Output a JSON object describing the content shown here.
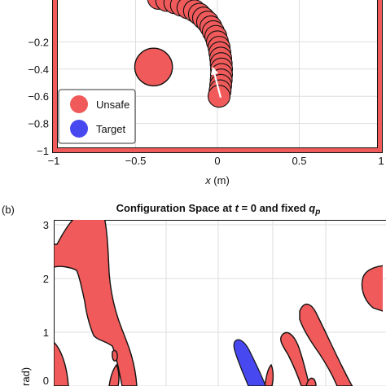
{
  "chart_data": [
    {
      "type": "scatter",
      "panel": "a",
      "xlabel_var": "x",
      "xlabel_unit": " (m)",
      "xlim": [
        -1,
        1
      ],
      "ylim": [
        -1,
        0
      ],
      "x_ticks": [
        -1,
        -0.5,
        0,
        0.5,
        1
      ],
      "x_tick_labels": [
        "−1",
        "−0.5",
        "0",
        "0.5",
        "1"
      ],
      "y_ticks": [
        -0.2,
        -0.4,
        -0.6,
        -0.8,
        -1
      ],
      "y_tick_labels": [
        "−0.2",
        "−0.4",
        "−0.6",
        "−0.8",
        "−1"
      ],
      "grid": true,
      "workspace_boundary_color": "#f05a5a",
      "obstacle": {
        "center": [
          -0.39,
          -0.385
        ],
        "radius": 0.115,
        "color": "#f05a5a"
      },
      "robot_trajectory": {
        "color": "#f05a5a",
        "radius": 0.067,
        "points": [
          [
            -0.36,
            0.12
          ],
          [
            -0.31,
            0.105
          ],
          [
            -0.26,
            0.088
          ],
          [
            -0.22,
            0.07
          ],
          [
            -0.18,
            0.05
          ],
          [
            -0.14,
            0.028
          ],
          [
            -0.11,
            0.003
          ],
          [
            -0.085,
            -0.025
          ],
          [
            -0.06,
            -0.055
          ],
          [
            -0.04,
            -0.09
          ],
          [
            -0.025,
            -0.125
          ],
          [
            -0.01,
            -0.16
          ],
          [
            0.0,
            -0.2
          ],
          [
            0.01,
            -0.24
          ],
          [
            0.015,
            -0.28
          ],
          [
            0.02,
            -0.32
          ],
          [
            0.023,
            -0.36
          ],
          [
            0.025,
            -0.4
          ],
          [
            0.025,
            -0.44
          ],
          [
            0.023,
            -0.48
          ],
          [
            0.02,
            -0.52
          ],
          [
            0.016,
            -0.56
          ],
          [
            0.01,
            -0.6
          ]
        ]
      },
      "heading_arrow": {
        "from": [
          0.02,
          -0.61
        ],
        "to": [
          -0.03,
          -0.38
        ],
        "color": "#ffffff"
      },
      "legend": {
        "position": "bottom-left",
        "entries": [
          {
            "label": "Unsafe",
            "color": "#f05a5a"
          },
          {
            "label": "Target",
            "color": "#4848f0"
          }
        ]
      }
    },
    {
      "type": "area",
      "panel": "b",
      "panel_label": "(b)",
      "title_prefix": "Configuration Space at ",
      "title_var": "t",
      "title_mid": " = 0 and fixed ",
      "title_var2": "q",
      "title_sub": "p",
      "ylabel": "rad)",
      "ylim": [
        -0.15,
        3.15
      ],
      "y_ticks": [
        3,
        2,
        1,
        0
      ],
      "y_tick_labels": [
        "3",
        "2",
        "1",
        "0"
      ],
      "grid": true,
      "unsafe_color": "#f05a5a",
      "target_color": "#4848f0"
    }
  ]
}
